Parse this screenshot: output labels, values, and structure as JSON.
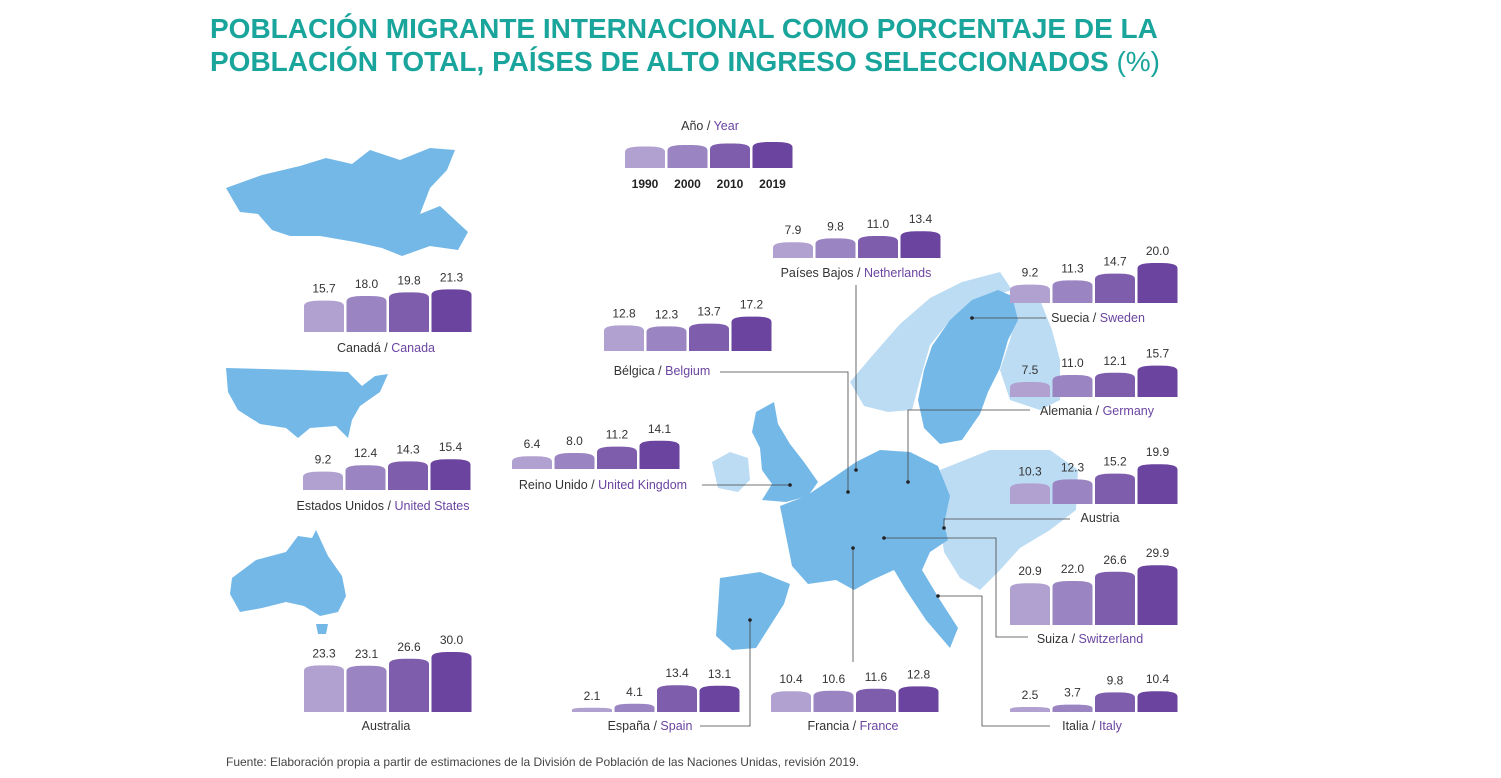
{
  "title": {
    "main": "POBLACIÓN MIGRANTE INTERNACIONAL COMO PORCENTAJE DE LA POBLACIÓN TOTAL, PAÍSES DE ALTO INGRESO SELECCIONADOS",
    "unit": "(%)"
  },
  "legend": {
    "es": "Año",
    "en": "Year"
  },
  "footer": "Fuente: Elaboración propia a partir de estimaciones de la División de Población de las Naciones Unidas, revisión 2019.",
  "colors": {
    "title": "#1aa59c",
    "years": [
      "#b0a1d0",
      "#9a85c2",
      "#7e5dad",
      "#6a449e"
    ],
    "map_highlight": "#74b8e8",
    "map_other": "#bcdcf4",
    "english_label": "#6a44a0"
  },
  "chart_data": {
    "type": "bar",
    "categories": [
      "1990",
      "2000",
      "2010",
      "2019"
    ],
    "ylabel": "",
    "series": [
      {
        "name_es": "Canadá",
        "name_en": "Canada",
        "values": [
          15.7,
          18.0,
          19.8,
          21.3
        ]
      },
      {
        "name_es": "Estados Unidos",
        "name_en": "United States",
        "values": [
          9.2,
          12.4,
          14.3,
          15.4
        ]
      },
      {
        "name_es": "Australia",
        "name_en": "",
        "values": [
          23.3,
          23.1,
          26.6,
          30.0
        ]
      },
      {
        "name_es": "Reino Unido",
        "name_en": "United Kingdom",
        "values": [
          6.4,
          8.0,
          11.2,
          14.1
        ]
      },
      {
        "name_es": "Bélgica",
        "name_en": "Belgium",
        "values": [
          12.8,
          12.3,
          13.7,
          17.2
        ]
      },
      {
        "name_es": "Países Bajos",
        "name_en": "Netherlands",
        "values": [
          7.9,
          9.8,
          11.0,
          13.4
        ]
      },
      {
        "name_es": "Suecia",
        "name_en": "Sweden",
        "values": [
          9.2,
          11.3,
          14.7,
          20.0
        ]
      },
      {
        "name_es": "Alemania",
        "name_en": "Germany",
        "values": [
          7.5,
          11.0,
          12.1,
          15.7
        ]
      },
      {
        "name_es": "Austria",
        "name_en": "",
        "values": [
          10.3,
          12.3,
          15.2,
          19.9
        ]
      },
      {
        "name_es": "Suiza",
        "name_en": "Switzerland",
        "values": [
          20.9,
          22.0,
          26.6,
          29.9
        ]
      },
      {
        "name_es": "España",
        "name_en": "Spain",
        "values": [
          2.1,
          4.1,
          13.4,
          13.1
        ]
      },
      {
        "name_es": "Francia",
        "name_en": "France",
        "values": [
          10.4,
          10.6,
          11.6,
          12.8
        ]
      },
      {
        "name_es": "Italia",
        "name_en": "Italy",
        "values": [
          2.5,
          3.7,
          9.8,
          10.4
        ]
      }
    ]
  }
}
